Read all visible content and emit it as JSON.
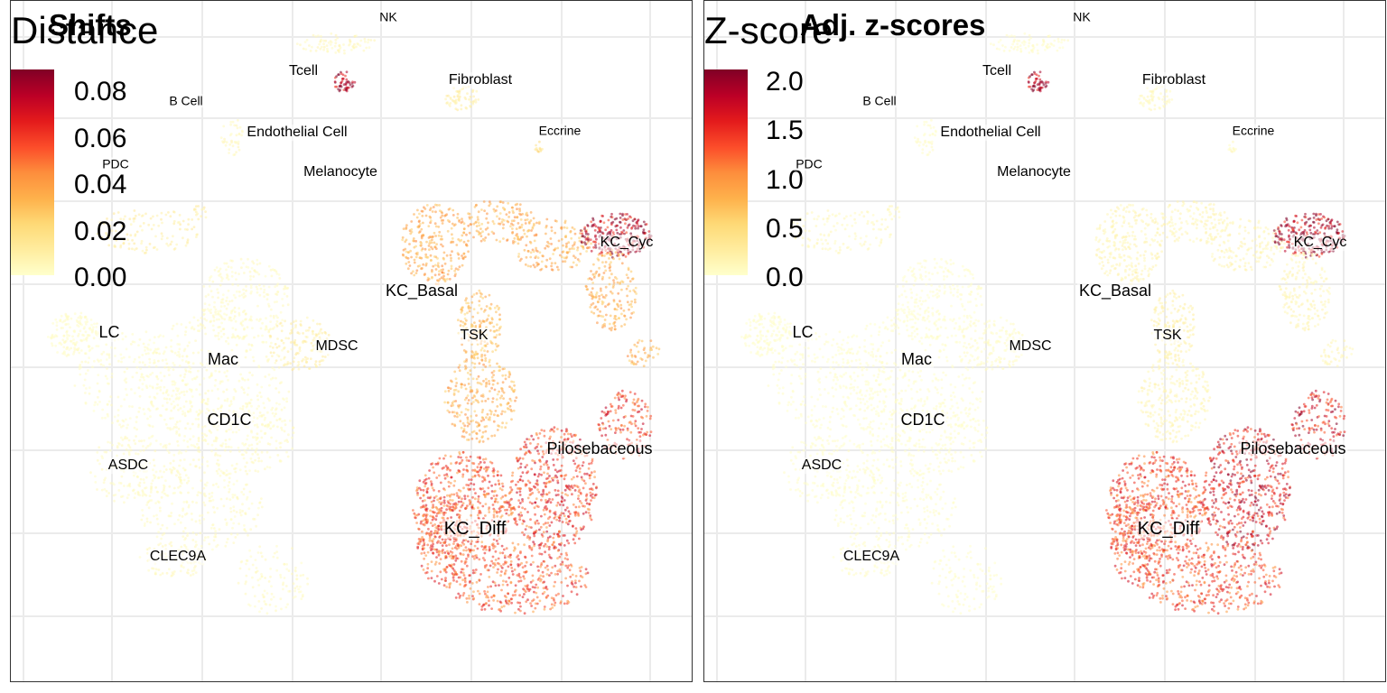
{
  "colors": {
    "scale": [
      "#ffffcc",
      "#ffeda0",
      "#fed976",
      "#feb24c",
      "#fd8d3c",
      "#fc4e2a",
      "#e31a1c",
      "#bd0026",
      "#800026"
    ],
    "grid": "#ebebeb",
    "border": "#333333"
  },
  "chart_data": [
    {
      "type": "scatter",
      "title": "Shifts",
      "colorbar_title": "Distance",
      "colorbar_ticks": [
        "0.08",
        "0.06",
        "0.04",
        "0.02",
        "0.00"
      ],
      "color_range": [
        0,
        0.09
      ],
      "clusters": [
        {
          "name": "NK",
          "value": 0.005
        },
        {
          "name": "Tcell",
          "value": 0.085
        },
        {
          "name": "Fibroblast",
          "value": 0.01
        },
        {
          "name": "B Cell",
          "value": 0.005
        },
        {
          "name": "Endothelial Cell",
          "value": 0.005
        },
        {
          "name": "Eccrine",
          "value": 0.02
        },
        {
          "name": "PDC",
          "value": 0.01
        },
        {
          "name": "Melanocyte",
          "value": 0.005
        },
        {
          "name": "KC_Cyc",
          "value": 0.08
        },
        {
          "name": "KC_Basal",
          "value": 0.035
        },
        {
          "name": "LC",
          "value": 0.002
        },
        {
          "name": "TSK",
          "value": 0.03
        },
        {
          "name": "MDSC",
          "value": 0.01
        },
        {
          "name": "Mac",
          "value": 0.003
        },
        {
          "name": "CD1C",
          "value": 0.003
        },
        {
          "name": "Pilosebaceous",
          "value": 0.06
        },
        {
          "name": "ASDC",
          "value": 0.003
        },
        {
          "name": "KC_Diff",
          "value": 0.055
        },
        {
          "name": "CLEC9A",
          "value": 0.004
        }
      ]
    },
    {
      "type": "scatter",
      "title": "Adj. z-scores",
      "colorbar_title": "Z-score",
      "colorbar_ticks": [
        "2.0",
        "1.5",
        "1.0",
        "0.5",
        "0.0"
      ],
      "color_range": [
        0,
        2.2
      ],
      "clusters": [
        {
          "name": "NK",
          "value": 0.05
        },
        {
          "name": "Tcell",
          "value": 2.1
        },
        {
          "name": "Fibroblast",
          "value": 0.1
        },
        {
          "name": "B Cell",
          "value": 0.05
        },
        {
          "name": "Endothelial Cell",
          "value": 0.05
        },
        {
          "name": "Eccrine",
          "value": 0.1
        },
        {
          "name": "PDC",
          "value": 0.1
        },
        {
          "name": "Melanocyte",
          "value": 0.05
        },
        {
          "name": "KC_Cyc",
          "value": 2.0
        },
        {
          "name": "KC_Basal",
          "value": 0.15
        },
        {
          "name": "LC",
          "value": 0.02
        },
        {
          "name": "TSK",
          "value": 0.2
        },
        {
          "name": "MDSC",
          "value": 0.05
        },
        {
          "name": "Mac",
          "value": 0.02
        },
        {
          "name": "CD1C",
          "value": 0.02
        },
        {
          "name": "Pilosebaceous",
          "value": 1.7
        },
        {
          "name": "ASDC",
          "value": 0.02
        },
        {
          "name": "KC_Diff",
          "value": 1.4
        },
        {
          "name": "CLEC9A",
          "value": 0.03
        }
      ]
    }
  ]
}
